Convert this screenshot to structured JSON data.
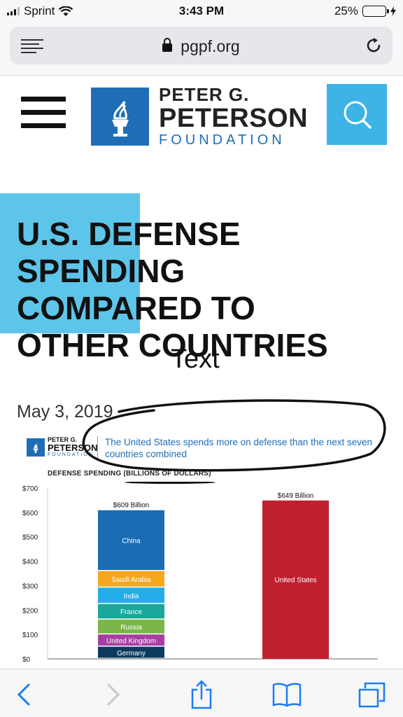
{
  "status_bar": {
    "carrier": "Sprint",
    "time": "3:43 PM",
    "battery": "25%",
    "battery_level": 0.25,
    "accent": "#3ac541"
  },
  "browser": {
    "url": "pgpf.org",
    "reader_icon": "reader-icon",
    "lock_icon": "lock-icon",
    "reload_icon": "reload-icon"
  },
  "site": {
    "logo_line1": "PETER G.",
    "logo_line2": "PETERSON",
    "logo_line3": "FOUNDATION",
    "brand_color": "#1f6eb5",
    "search_color": "#3db3e6"
  },
  "article": {
    "title_lines": [
      "U.S. DEFENSE",
      "SPENDING",
      "COMPARED TO",
      "OTHER COUNTRIES"
    ],
    "annotation": "Text",
    "date": "May 3, 2019"
  },
  "infographic": {
    "logo_a": "PETER G.",
    "logo_b": "PETERSON",
    "logo_c": "FOUNDATION",
    "headline": "The United States spends more on defense than the next seven countries combined",
    "subtitle": "DEFENSE SPENDING (BILLIONS OF DOLLARS)"
  },
  "chart_data": {
    "type": "bar",
    "ylabel": "",
    "ylim": [
      0,
      700
    ],
    "yticks": [
      "$0",
      "$100",
      "$200",
      "$300",
      "$400",
      "$500",
      "$600",
      "$700"
    ],
    "stack": {
      "total_label": "$609 Billion",
      "segments": [
        {
          "name": "Germany",
          "value": 50,
          "color": "#0b3b5e"
        },
        {
          "name": "United Kingdom",
          "value": 50,
          "color": "#a63fa3"
        },
        {
          "name": "Russia",
          "value": 61,
          "color": "#7ab648"
        },
        {
          "name": "France",
          "value": 64,
          "color": "#1aa89c"
        },
        {
          "name": "India",
          "value": 67,
          "color": "#21aee8"
        },
        {
          "name": "Saudi Arabia",
          "value": 68,
          "color": "#f6a81c"
        },
        {
          "name": "China",
          "value": 249,
          "color": "#1a6cb3"
        }
      ]
    },
    "single": {
      "name": "United States",
      "value": 649,
      "total_label": "$649 Billion",
      "color": "#c1202e"
    }
  },
  "toolbar": {
    "back": "back-icon",
    "forward": "forward-icon",
    "share": "share-icon",
    "bookmarks": "bookmarks-icon",
    "tabs": "tabs-icon"
  }
}
